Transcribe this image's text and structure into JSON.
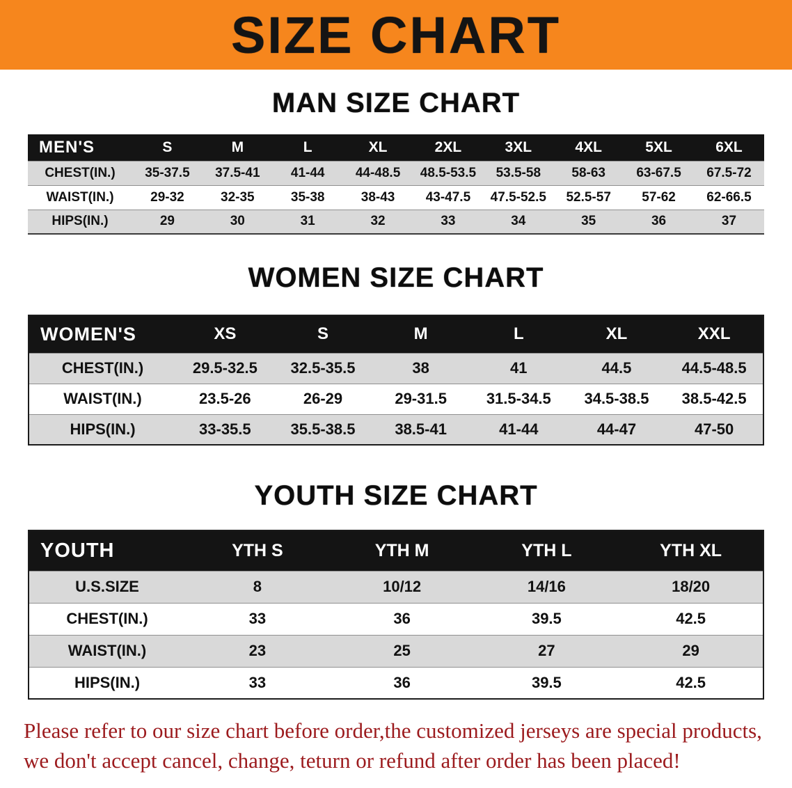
{
  "banner": {
    "title": "SIZE CHART"
  },
  "colors": {
    "banner_bg": "#f6861d",
    "table_header_bg": "#141414",
    "row_stripe": "#d9d9d9",
    "disclaimer_text": "#9c1b1e"
  },
  "chart_data": [
    {
      "type": "table",
      "title": "MAN SIZE CHART",
      "corner_label": "MEN'S",
      "columns": [
        "S",
        "M",
        "L",
        "XL",
        "2XL",
        "3XL",
        "4XL",
        "5XL",
        "6XL"
      ],
      "rows": [
        {
          "label": "CHEST(IN.)",
          "values": [
            "35-37.5",
            "37.5-41",
            "41-44",
            "44-48.5",
            "48.5-53.5",
            "53.5-58",
            "58-63",
            "63-67.5",
            "67.5-72"
          ]
        },
        {
          "label": "WAIST(IN.)",
          "values": [
            "29-32",
            "32-35",
            "35-38",
            "38-43",
            "43-47.5",
            "47.5-52.5",
            "52.5-57",
            "57-62",
            "62-66.5"
          ]
        },
        {
          "label": "HIPS(IN.)",
          "values": [
            "29",
            "30",
            "31",
            "32",
            "33",
            "34",
            "35",
            "36",
            "37"
          ]
        }
      ]
    },
    {
      "type": "table",
      "title": "WOMEN SIZE CHART",
      "corner_label": "WOMEN'S",
      "columns": [
        "XS",
        "S",
        "M",
        "L",
        "XL",
        "XXL"
      ],
      "rows": [
        {
          "label": "CHEST(IN.)",
          "values": [
            "29.5-32.5",
            "32.5-35.5",
            "38",
            "41",
            "44.5",
            "44.5-48.5"
          ]
        },
        {
          "label": "WAIST(IN.)",
          "values": [
            "23.5-26",
            "26-29",
            "29-31.5",
            "31.5-34.5",
            "34.5-38.5",
            "38.5-42.5"
          ]
        },
        {
          "label": "HIPS(IN.)",
          "values": [
            "33-35.5",
            "35.5-38.5",
            "38.5-41",
            "41-44",
            "44-47",
            "47-50"
          ]
        }
      ]
    },
    {
      "type": "table",
      "title": "YOUTH SIZE CHART",
      "corner_label": "YOUTH",
      "columns": [
        "YTH S",
        "YTH M",
        "YTH L",
        "YTH XL"
      ],
      "rows": [
        {
          "label": "U.S.SIZE",
          "values": [
            "8",
            "10/12",
            "14/16",
            "18/20"
          ]
        },
        {
          "label": "CHEST(IN.)",
          "values": [
            "33",
            "36",
            "39.5",
            "42.5"
          ]
        },
        {
          "label": "WAIST(IN.)",
          "values": [
            "23",
            "25",
            "27",
            "29"
          ]
        },
        {
          "label": "HIPS(IN.)",
          "values": [
            "33",
            "36",
            "39.5",
            "42.5"
          ]
        }
      ]
    }
  ],
  "footer": {
    "line1": "Please refer to our size chart before order,the customized jerseys are special products,",
    "line2": "we don't accept cancel, change, teturn or refund after order has been placed!"
  }
}
